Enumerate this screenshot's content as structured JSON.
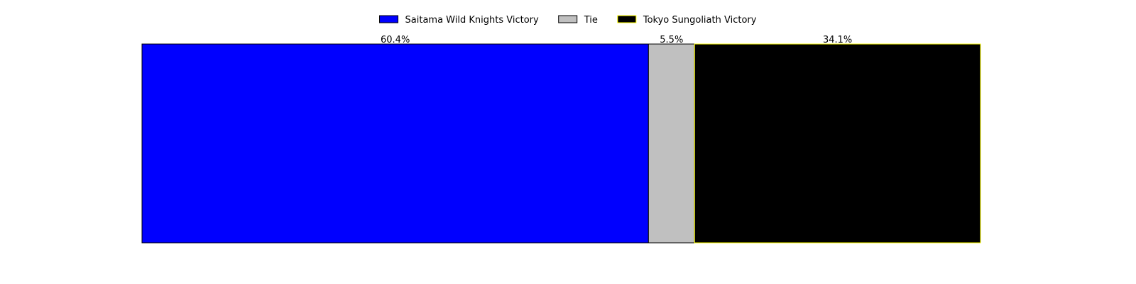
{
  "chart_data": {
    "type": "bar",
    "orientation": "horizontal-stacked",
    "categories": [
      "Saitama Wild Knights Victory",
      "Tie",
      "Tokyo Sungoliath Victory"
    ],
    "values": [
      60.4,
      5.5,
      34.1
    ],
    "value_labels": [
      "60.4%",
      "5.5%",
      "34.1%"
    ],
    "unit": "%",
    "xlim": [
      0,
      100
    ],
    "colors": [
      "#0000ff",
      "#c0c0c0",
      "#000000"
    ],
    "edge_colors": [
      "#000000",
      "#000000",
      "#ffff00"
    ],
    "legend": {
      "placement": "top-center",
      "entries": [
        "Saitama Wild Knights Victory",
        "Tie",
        "Tokyo Sungoliath Victory"
      ]
    },
    "grid": false,
    "axes_visible": false
  }
}
